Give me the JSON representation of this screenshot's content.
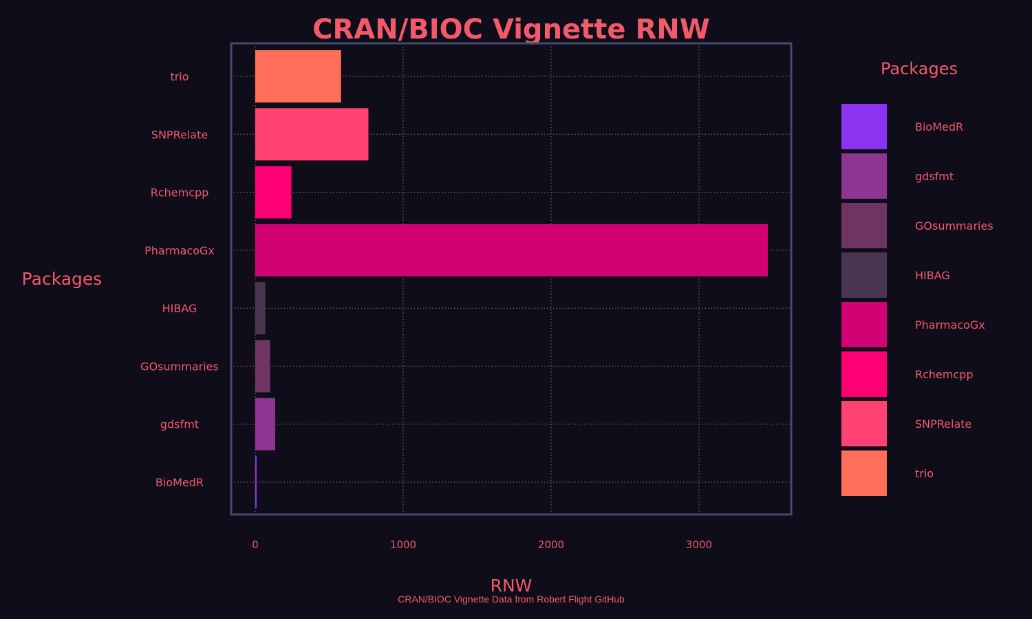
{
  "chart_data": {
    "type": "bar",
    "orientation": "horizontal",
    "title": "CRAN/BIOC Vignette RNW",
    "xlabel": "RNW",
    "ylabel": "Packages",
    "caption": "CRAN/BIOC Vignette Data from Robert Flight GitHub",
    "categories": [
      "BioMedR",
      "gdsfmt",
      "GOsummaries",
      "HIBAG",
      "PharmacoGx",
      "Rchemcpp",
      "SNPRelate",
      "trio"
    ],
    "values": [
      8,
      135,
      100,
      68,
      3465,
      245,
      765,
      580
    ],
    "colors": [
      "#8b33f0",
      "#8e3491",
      "#6e3562",
      "#4a3550",
      "#d10273",
      "#ff0074",
      "#ff4271",
      "#ff6e58"
    ],
    "xlim": [
      -170,
      3630
    ],
    "xticks": [
      0,
      1000,
      2000,
      3000
    ],
    "grid": true,
    "legend": {
      "title": "Packages",
      "position": "right",
      "entries": [
        "BioMedR",
        "gdsfmt",
        "GOsummaries",
        "HIBAG",
        "PharmacoGx",
        "Rchemcpp",
        "SNPRelate",
        "trio"
      ]
    }
  },
  "style": {
    "background": "#0f0d1a",
    "text_color": "#f25a6a",
    "panel_border": "#444a6c",
    "grid_color": "#8a7a55"
  }
}
